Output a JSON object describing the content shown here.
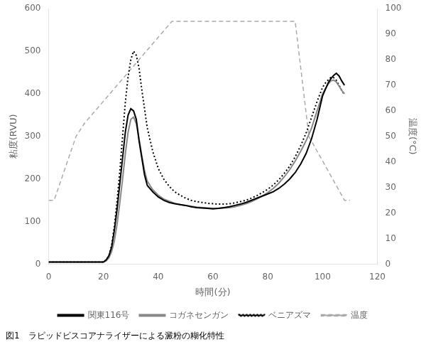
{
  "chart_data": {
    "type": "line",
    "xlabel": "時間(分)",
    "ylabel": "粘度(RVU)",
    "y2label": "温度(°C)",
    "caption": "図1　ラピッドビスコアナライザーによる澱粉の糊化特性",
    "xlim": [
      0,
      120
    ],
    "ylim": [
      0,
      600
    ],
    "y2lim": [
      0,
      100
    ],
    "xticks": [
      0,
      20,
      40,
      60,
      80,
      100,
      120
    ],
    "yticks": [
      0,
      100,
      200,
      300,
      400,
      500,
      600
    ],
    "y2ticks": [
      0,
      10,
      20,
      30,
      40,
      50,
      60,
      70,
      80,
      90,
      100
    ],
    "grid": false,
    "legend": "bottom",
    "series": [
      {
        "name": "関東116号",
        "color": "#000000",
        "line_style": "solid",
        "x": [
          0,
          1,
          2,
          3,
          4,
          5,
          6,
          7,
          8,
          9,
          10,
          11,
          12,
          13,
          14,
          15,
          16,
          17,
          18,
          19,
          20,
          21,
          22,
          23,
          24,
          25,
          26,
          27,
          28,
          29,
          30,
          31,
          32,
          33,
          34,
          35,
          36,
          38,
          40,
          42,
          44,
          46,
          48,
          50,
          52,
          54,
          56,
          58,
          60,
          62,
          64,
          66,
          68,
          70,
          72,
          74,
          76,
          78,
          80,
          82,
          84,
          86,
          88,
          90,
          92,
          94,
          96,
          98,
          100,
          101,
          102,
          103,
          104,
          105,
          106,
          107,
          108
        ],
        "values": [
          5,
          5,
          5,
          5,
          5,
          5,
          5,
          5,
          5,
          5,
          5,
          5,
          5,
          5,
          5,
          5,
          5,
          5,
          5,
          5,
          5,
          10,
          20,
          40,
          80,
          130,
          190,
          250,
          310,
          350,
          365,
          360,
          340,
          290,
          250,
          210,
          185,
          170,
          158,
          150,
          145,
          142,
          140,
          138,
          135,
          133,
          132,
          131,
          130,
          131,
          133,
          135,
          138,
          141,
          145,
          150,
          155,
          160,
          165,
          170,
          178,
          188,
          200,
          215,
          235,
          260,
          295,
          340,
          395,
          410,
          425,
          435,
          443,
          448,
          442,
          430,
          420
        ]
      },
      {
        "name": "コガネセンガン",
        "color": "#888888",
        "line_style": "solid",
        "x": [
          0,
          5,
          10,
          15,
          18,
          20,
          21,
          22,
          23,
          24,
          25,
          26,
          27,
          28,
          29,
          30,
          31,
          32,
          33,
          34,
          35,
          36,
          38,
          40,
          42,
          44,
          46,
          48,
          50,
          52,
          54,
          56,
          58,
          60,
          62,
          64,
          66,
          68,
          70,
          72,
          74,
          76,
          78,
          80,
          82,
          84,
          86,
          88,
          90,
          92,
          94,
          96,
          98,
          100,
          101,
          102,
          103,
          104,
          105,
          106,
          107,
          108
        ],
        "values": [
          5,
          5,
          5,
          5,
          5,
          5,
          8,
          15,
          30,
          55,
          95,
          145,
          200,
          260,
          310,
          340,
          345,
          330,
          295,
          255,
          220,
          195,
          175,
          162,
          153,
          148,
          143,
          140,
          138,
          136,
          134,
          133,
          132,
          131,
          131,
          132,
          133,
          135,
          138,
          142,
          147,
          153,
          160,
          168,
          178,
          190,
          205,
          222,
          242,
          265,
          290,
          320,
          360,
          400,
          412,
          422,
          430,
          432,
          428,
          418,
          408,
          400
        ]
      },
      {
        "name": "ベニアズマ",
        "color": "#000000",
        "line_style": "dotted",
        "x": [
          0,
          5,
          10,
          15,
          18,
          20,
          21,
          22,
          23,
          24,
          25,
          26,
          27,
          28,
          29,
          30,
          31,
          32,
          33,
          34,
          35,
          36,
          38,
          40,
          42,
          44,
          46,
          48,
          50,
          52,
          54,
          56,
          58,
          60,
          62,
          64,
          66,
          68,
          70,
          72,
          74,
          76,
          78,
          80,
          82,
          84,
          86,
          88,
          90,
          92,
          94,
          96,
          98,
          100,
          101,
          102,
          103,
          104,
          105,
          106,
          107,
          108
        ],
        "values": [
          5,
          5,
          5,
          5,
          5,
          5,
          10,
          20,
          45,
          90,
          150,
          220,
          300,
          380,
          440,
          480,
          500,
          490,
          460,
          410,
          365,
          320,
          265,
          225,
          200,
          183,
          170,
          162,
          155,
          150,
          147,
          145,
          143,
          142,
          141,
          141,
          142,
          144,
          147,
          150,
          155,
          161,
          168,
          176,
          186,
          198,
          213,
          230,
          252,
          278,
          308,
          345,
          382,
          415,
          425,
          432,
          438,
          438,
          432,
          420,
          408,
          398
        ]
      },
      {
        "name": "温度",
        "color": "#aaaaaa",
        "line_style": "dashed",
        "axis": "y2",
        "x": [
          0,
          2,
          10,
          13,
          45,
          57,
          62,
          90,
          95,
          108,
          110
        ],
        "values": [
          25,
          25,
          50,
          55,
          95,
          95,
          95,
          95,
          50,
          25,
          25
        ]
      }
    ]
  }
}
